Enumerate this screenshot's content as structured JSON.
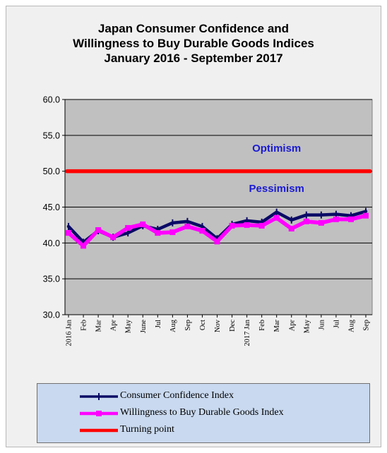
{
  "chart_data": {
    "type": "line",
    "title": [
      "Japan Consumer Confidence and",
      "Willingness to Buy Durable Goods Indices",
      "January 2016 - September  2017"
    ],
    "xlabel": "",
    "ylabel": "",
    "ylim": [
      30.0,
      60.0
    ],
    "yticks": [
      "30.0",
      "35.0",
      "40.0",
      "45.0",
      "50.0",
      "55.0",
      "60.0"
    ],
    "grid": true,
    "legend_position": "bottom",
    "categories": [
      "2016 Jan",
      "Feb",
      "Mar",
      "Apr",
      "May",
      "June",
      "Jul",
      "Aug",
      "Sep",
      "Oct",
      "Nov",
      "Dec",
      "2017 Jan",
      "Feb",
      "Mar",
      "Apr",
      "May",
      "Jun",
      "Jul",
      "Aug",
      "Sep"
    ],
    "series": [
      {
        "name": "Consumer Confidence Index",
        "color": "#0a0a66",
        "marker": "dash",
        "values": [
          42.3,
          40.1,
          41.7,
          40.8,
          41.4,
          42.4,
          41.9,
          42.8,
          43.0,
          42.3,
          40.6,
          42.6,
          43.1,
          42.9,
          44.3,
          43.2,
          43.9,
          43.9,
          44.0,
          43.8,
          44.4
        ]
      },
      {
        "name": "Willingness to Buy Durable Goods Index",
        "color": "#ff00ff",
        "marker": "square",
        "values": [
          41.4,
          39.6,
          41.8,
          40.8,
          42.1,
          42.6,
          41.4,
          41.5,
          42.3,
          41.7,
          40.2,
          42.4,
          42.5,
          42.4,
          43.5,
          42.0,
          43.0,
          42.8,
          43.3,
          43.3,
          43.8
        ]
      },
      {
        "name": "Turning point",
        "color": "#ff0000",
        "marker": "none",
        "values": [
          50.0,
          50.0,
          50.0,
          50.0,
          50.0,
          50.0,
          50.0,
          50.0,
          50.0,
          50.0,
          50.0,
          50.0,
          50.0,
          50.0,
          50.0,
          50.0,
          50.0,
          50.0,
          50.0,
          50.0,
          50.0
        ]
      }
    ],
    "annotations": [
      {
        "text": "Optimism",
        "x": 14,
        "y": 52.7
      },
      {
        "text": "Pessimism",
        "x": 14,
        "y": 47.1
      }
    ]
  }
}
